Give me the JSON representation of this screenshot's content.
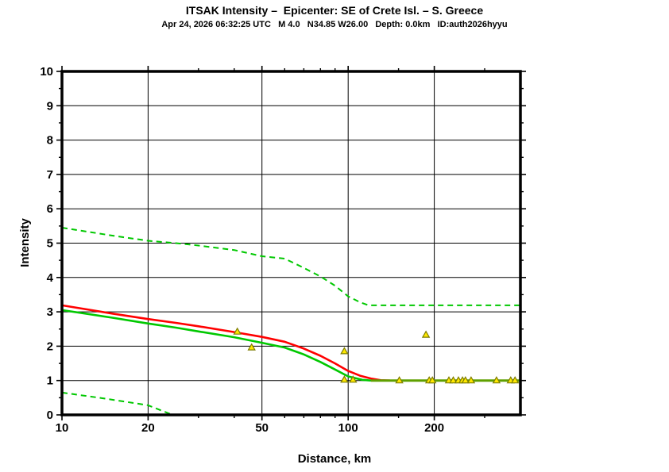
{
  "header": {
    "title": "ITSAK Intensity –  Epicenter: SE of Crete Isl. – S. Greece",
    "subtitle": "Apr 24, 2026 06:32:25 UTC   M 4.0   N34.85 W26.00   Depth: 0.0km   ID:auth2026hyyu"
  },
  "chart_data": {
    "type": "line",
    "title": "ITSAK Intensity –  Epicenter: SE of Crete Isl. – S. Greece",
    "subtitle": "Apr 24, 2026 06:32:25 UTC   M 4.0   N34.85 W26.00   Depth: 0.0km   ID:auth2026hyyu",
    "xlabel": "Distance, km",
    "ylabel": "Intensity",
    "x_scale": "log",
    "xlim": [
      10,
      400
    ],
    "ylim": [
      0,
      10
    ],
    "x_major_ticks": [
      10,
      20,
      50,
      100,
      200
    ],
    "x_minor_ticks": [
      30,
      40,
      60,
      70,
      80,
      90,
      150,
      300
    ],
    "y_major_tick_step": 1,
    "y_minor_tick_step": 0.5,
    "grid": {
      "x": [
        20,
        50,
        100,
        200
      ],
      "y": [
        1,
        2,
        3,
        4,
        5,
        6,
        7,
        8,
        9
      ]
    },
    "legend": "none",
    "frame_color": "#000000",
    "series": [
      {
        "name": "upper-sigma-bound",
        "style": "dashed",
        "color": "#00c800",
        "width": 2,
        "points": [
          [
            10,
            5.45
          ],
          [
            15,
            5.22
          ],
          [
            20,
            5.07
          ],
          [
            25,
            5.0
          ],
          [
            30,
            4.93
          ],
          [
            40,
            4.8
          ],
          [
            50,
            4.62
          ],
          [
            60,
            4.55
          ],
          [
            70,
            4.28
          ],
          [
            80,
            4.03
          ],
          [
            90,
            3.76
          ],
          [
            100,
            3.45
          ],
          [
            110,
            3.28
          ],
          [
            118,
            3.19
          ],
          [
            400,
            3.19
          ]
        ]
      },
      {
        "name": "lower-sigma-bound",
        "style": "dashed",
        "color": "#00c800",
        "width": 2,
        "points": [
          [
            10,
            0.65
          ],
          [
            14,
            0.48
          ],
          [
            18,
            0.34
          ],
          [
            20,
            0.28
          ],
          [
            24,
            0.02
          ]
        ]
      },
      {
        "name": "attenuation-model-red",
        "style": "solid",
        "color": "#ff0000",
        "width": 2.6,
        "points": [
          [
            10,
            3.19
          ],
          [
            15,
            2.95
          ],
          [
            20,
            2.79
          ],
          [
            25,
            2.68
          ],
          [
            30,
            2.58
          ],
          [
            40,
            2.41
          ],
          [
            50,
            2.27
          ],
          [
            60,
            2.13
          ],
          [
            70,
            1.93
          ],
          [
            80,
            1.72
          ],
          [
            90,
            1.5
          ],
          [
            100,
            1.28
          ],
          [
            110,
            1.14
          ],
          [
            120,
            1.06
          ],
          [
            130,
            1.01
          ],
          [
            140,
            1.0
          ]
        ]
      },
      {
        "name": "attenuation-model-green",
        "style": "solid",
        "color": "#00c800",
        "width": 2.6,
        "points": [
          [
            10,
            3.05
          ],
          [
            15,
            2.83
          ],
          [
            20,
            2.66
          ],
          [
            25,
            2.54
          ],
          [
            30,
            2.43
          ],
          [
            40,
            2.26
          ],
          [
            50,
            2.1
          ],
          [
            60,
            1.96
          ],
          [
            70,
            1.76
          ],
          [
            80,
            1.54
          ],
          [
            90,
            1.32
          ],
          [
            100,
            1.12
          ],
          [
            112,
            1.02
          ],
          [
            120,
            1.0
          ]
        ]
      },
      {
        "name": "intensity-floor",
        "style": "solid",
        "color": "#5fa000",
        "width": 3,
        "points": [
          [
            120,
            1.0
          ],
          [
            400,
            1.0
          ]
        ]
      }
    ],
    "scatter": {
      "name": "observed-intensities",
      "marker": "triangle",
      "fill": "#ffe800",
      "stroke": "#7c7c00",
      "points": [
        [
          41,
          2.42
        ],
        [
          46,
          1.96
        ],
        [
          97,
          1.85
        ],
        [
          187,
          2.33
        ],
        [
          97,
          1.02
        ],
        [
          104,
          1.02
        ],
        [
          151,
          1.0
        ],
        [
          192,
          1.0
        ],
        [
          197,
          1.0
        ],
        [
          225,
          1.0
        ],
        [
          233,
          1.0
        ],
        [
          243,
          1.0
        ],
        [
          251,
          1.0
        ],
        [
          257,
          1.0
        ],
        [
          269,
          1.0
        ],
        [
          330,
          1.0
        ],
        [
          370,
          1.0
        ],
        [
          383,
          1.0
        ]
      ]
    }
  }
}
